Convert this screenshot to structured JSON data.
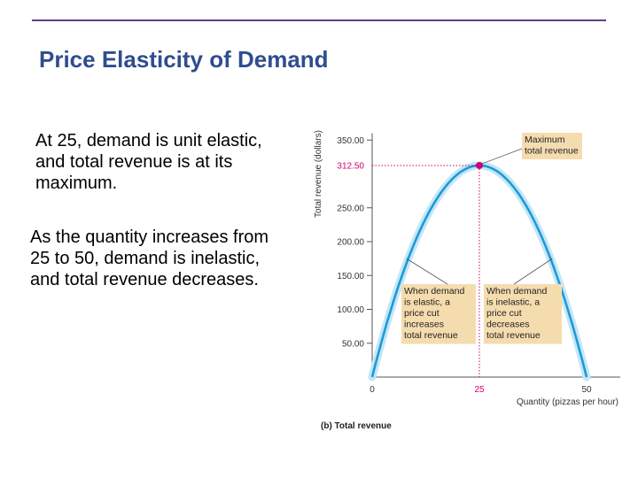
{
  "slide": {
    "title": "Price Elasticity of Demand",
    "paragraph1": "At 25, demand is unit elastic, and total revenue is at its maximum.",
    "paragraph2": "As the quantity increases from 25 to 50, demand is inelastic, and total revenue decreases."
  },
  "chart_data": {
    "type": "line",
    "ylabel": "Total revenue (dollars)",
    "xlabel": "Quantity (pizzas per hour)",
    "caption_bold": "(b)",
    "caption_rest": "Total revenue",
    "y_ticks": [
      "350.00",
      "250.00",
      "200.00",
      "150.00",
      "100.00",
      "50.00"
    ],
    "y_tick_values": [
      350,
      250,
      200,
      150,
      100,
      50
    ],
    "x_ticks": [
      "0",
      "50"
    ],
    "x_tick_values": [
      0,
      50
    ],
    "peak": {
      "x": 25,
      "y": 312.5,
      "x_label": "25",
      "y_label": "312.50"
    },
    "xlim": [
      0,
      58
    ],
    "ylim": [
      0,
      360
    ],
    "series": [
      {
        "color": "#1b9bd7",
        "x": [
          0,
          5,
          10,
          15,
          20,
          25,
          30,
          35,
          40,
          45,
          50
        ],
        "y": [
          0,
          112.5,
          200,
          262.5,
          300,
          312.5,
          300,
          262.5,
          200,
          112.5,
          0
        ]
      }
    ],
    "annotations": {
      "max": [
        "Maximum",
        "total revenue"
      ],
      "elastic": [
        "When demand",
        "is elastic, a",
        "price cut",
        "increases",
        "total revenue"
      ],
      "inelastic": [
        "When demand",
        "is inelastic, a",
        "price cut",
        "decreases",
        "total revenue"
      ]
    },
    "colors": {
      "curve": "#1b9bd7",
      "halo": "#c5e6f6",
      "peak": "#d0006f",
      "box": "#f5dcae"
    },
    "grid": false
  }
}
